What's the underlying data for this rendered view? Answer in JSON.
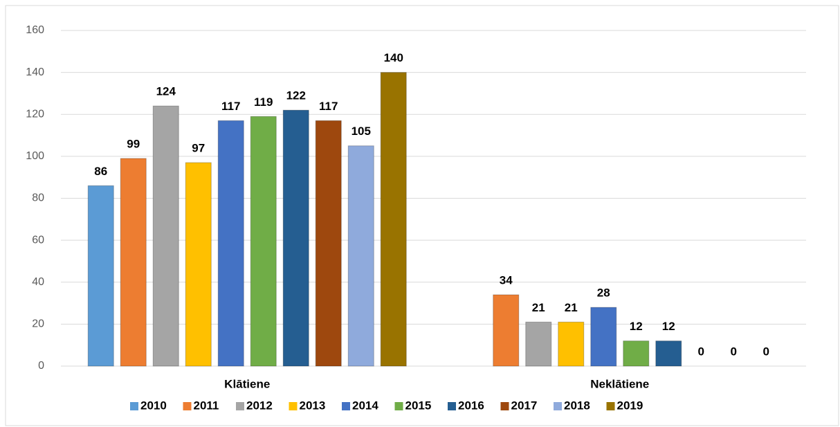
{
  "chart_data": {
    "type": "bar",
    "categories": [
      "Klātiene",
      "Neklātiene"
    ],
    "series": [
      {
        "name": "2010",
        "color": "#5b9bd5",
        "values": [
          86,
          null
        ]
      },
      {
        "name": "2011",
        "color": "#ed7d31",
        "values": [
          99,
          34
        ]
      },
      {
        "name": "2012",
        "color": "#a5a5a5",
        "values": [
          124,
          21
        ]
      },
      {
        "name": "2013",
        "color": "#ffc000",
        "values": [
          97,
          21
        ]
      },
      {
        "name": "2014",
        "color": "#4472c4",
        "values": [
          117,
          28
        ]
      },
      {
        "name": "2015",
        "color": "#70ad47",
        "values": [
          119,
          12
        ]
      },
      {
        "name": "2016",
        "color": "#255e91",
        "values": [
          122,
          12
        ]
      },
      {
        "name": "2017",
        "color": "#9e480e",
        "values": [
          117,
          0
        ]
      },
      {
        "name": "2018",
        "color": "#8faadc",
        "values": [
          105,
          0
        ]
      },
      {
        "name": "2019",
        "color": "#997300",
        "values": [
          140,
          0
        ]
      }
    ],
    "ylim": [
      0,
      160
    ],
    "yticks": [
      0,
      20,
      40,
      60,
      80,
      100,
      120,
      140,
      160
    ],
    "grid": true,
    "legend": "bottom"
  }
}
